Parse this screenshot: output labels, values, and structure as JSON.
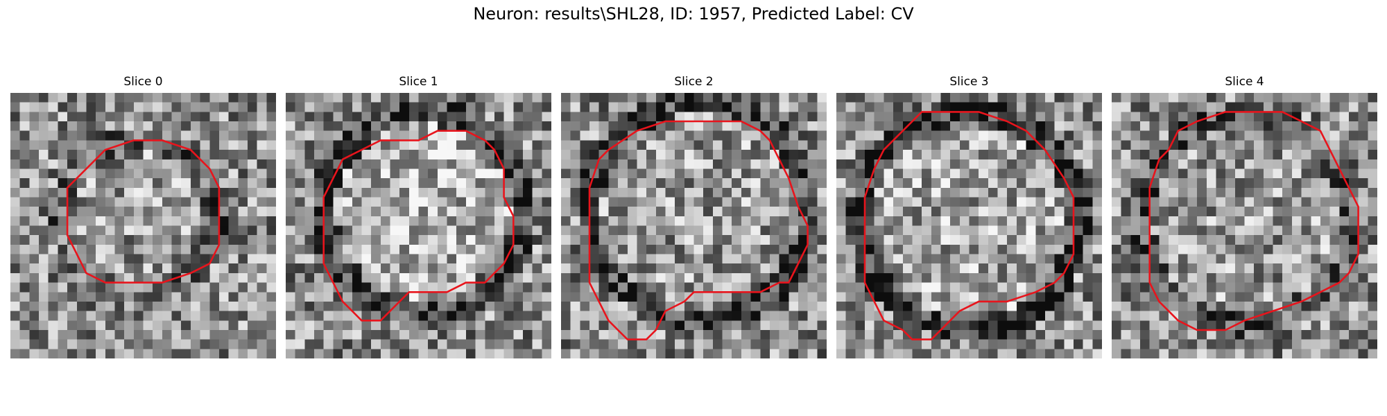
{
  "figure": {
    "suptitle": "Neuron: results\\SHL28, ID: 1957, Predicted Label: CV"
  },
  "style": {
    "contour_color": "#e8141c"
  },
  "panels": [
    {
      "title": "Slice 0",
      "grid_size": 28,
      "seed": 11,
      "blob": {
        "cx": 13.5,
        "cy": 13.0,
        "r": 8.0,
        "ring": 0.15,
        "inner": 0.05
      },
      "contour": [
        [
          10,
          6
        ],
        [
          13,
          5
        ],
        [
          16,
          5
        ],
        [
          19,
          6
        ],
        [
          21,
          8
        ],
        [
          22,
          10
        ],
        [
          22,
          13
        ],
        [
          22,
          16
        ],
        [
          21,
          18
        ],
        [
          19,
          19
        ],
        [
          16,
          20
        ],
        [
          13,
          20
        ],
        [
          10,
          20
        ],
        [
          8,
          19
        ],
        [
          7,
          17
        ],
        [
          6,
          15
        ],
        [
          6,
          12
        ],
        [
          6,
          10
        ],
        [
          7,
          9
        ],
        [
          9,
          7
        ]
      ]
    },
    {
      "title": "Slice 1",
      "grid_size": 28,
      "seed": 23,
      "blob": {
        "cx": 14.5,
        "cy": 12.5,
        "r": 10.5,
        "ring": 0.3,
        "inner": 0.15
      },
      "contour": [
        [
          10,
          5
        ],
        [
          14,
          5
        ],
        [
          16,
          4
        ],
        [
          19,
          4
        ],
        [
          21,
          5
        ],
        [
          22,
          6
        ],
        [
          23,
          8
        ],
        [
          23,
          11
        ],
        [
          24,
          13
        ],
        [
          24,
          16
        ],
        [
          23,
          18
        ],
        [
          21,
          20
        ],
        [
          19,
          20
        ],
        [
          17,
          21
        ],
        [
          13,
          21
        ],
        [
          12,
          22
        ],
        [
          10,
          24
        ],
        [
          8,
          24
        ],
        [
          7,
          23
        ],
        [
          6,
          22
        ],
        [
          5,
          20
        ],
        [
          4,
          18
        ],
        [
          4,
          15
        ],
        [
          4,
          11
        ],
        [
          5,
          9
        ],
        [
          6,
          7
        ],
        [
          8,
          6
        ]
      ]
    },
    {
      "title": "Slice 2",
      "grid_size": 28,
      "seed": 37,
      "blob": {
        "cx": 14.5,
        "cy": 12.5,
        "r": 11.5,
        "ring": 0.3,
        "inner": 0.05
      },
      "contour": [
        [
          8,
          4
        ],
        [
          11,
          3
        ],
        [
          14,
          3
        ],
        [
          17,
          3
        ],
        [
          19,
          3
        ],
        [
          21,
          4
        ],
        [
          22,
          5
        ],
        [
          23,
          7
        ],
        [
          24,
          9
        ],
        [
          25,
          12
        ],
        [
          26,
          14
        ],
        [
          26,
          16
        ],
        [
          25,
          18
        ],
        [
          24,
          20
        ],
        [
          23,
          20
        ],
        [
          21,
          21
        ],
        [
          18,
          21
        ],
        [
          14,
          21
        ],
        [
          13,
          22
        ],
        [
          11,
          23
        ],
        [
          10,
          25
        ],
        [
          9,
          26
        ],
        [
          7,
          26
        ],
        [
          6,
          25
        ],
        [
          5,
          24
        ],
        [
          4,
          22
        ],
        [
          3,
          20
        ],
        [
          3,
          18
        ],
        [
          3,
          14
        ],
        [
          3,
          10
        ],
        [
          4,
          7
        ],
        [
          5,
          6
        ]
      ]
    },
    {
      "title": "Slice 3",
      "grid_size": 28,
      "seed": 53,
      "blob": {
        "cx": 14.0,
        "cy": 13.5,
        "r": 11.5,
        "ring": 0.35,
        "inner": 0.1
      },
      "contour": [
        [
          9,
          2
        ],
        [
          12,
          2
        ],
        [
          15,
          2
        ],
        [
          18,
          3
        ],
        [
          20,
          4
        ],
        [
          22,
          6
        ],
        [
          24,
          9
        ],
        [
          25,
          11
        ],
        [
          25,
          14
        ],
        [
          25,
          17
        ],
        [
          24,
          19
        ],
        [
          23,
          20
        ],
        [
          21,
          21
        ],
        [
          18,
          22
        ],
        [
          15,
          22
        ],
        [
          13,
          23
        ],
        [
          11,
          25
        ],
        [
          10,
          26
        ],
        [
          8,
          26
        ],
        [
          7,
          25
        ],
        [
          5,
          24
        ],
        [
          4,
          22
        ],
        [
          3,
          20
        ],
        [
          3,
          17
        ],
        [
          3,
          14
        ],
        [
          3,
          11
        ],
        [
          4,
          8
        ],
        [
          5,
          6
        ],
        [
          7,
          4
        ]
      ]
    },
    {
      "title": "Slice 4",
      "grid_size": 28,
      "seed": 71,
      "blob": {
        "cx": 14.0,
        "cy": 13.5,
        "r": 11.0,
        "ring": 0.2,
        "inner": 0.05
      },
      "contour": [
        [
          9,
          3
        ],
        [
          12,
          2
        ],
        [
          15,
          2
        ],
        [
          18,
          2
        ],
        [
          20,
          3
        ],
        [
          22,
          4
        ],
        [
          23,
          6
        ],
        [
          24,
          8
        ],
        [
          25,
          10
        ],
        [
          26,
          12
        ],
        [
          26,
          14
        ],
        [
          26,
          17
        ],
        [
          25,
          19
        ],
        [
          24,
          20
        ],
        [
          22,
          21
        ],
        [
          20,
          22
        ],
        [
          17,
          23
        ],
        [
          14,
          24
        ],
        [
          12,
          25
        ],
        [
          9,
          25
        ],
        [
          7,
          24
        ],
        [
          6,
          23
        ],
        [
          5,
          22
        ],
        [
          4,
          20
        ],
        [
          4,
          18
        ],
        [
          4,
          15
        ],
        [
          4,
          12
        ],
        [
          4,
          10
        ],
        [
          5,
          7
        ],
        [
          6,
          6
        ],
        [
          7,
          4
        ]
      ]
    }
  ]
}
